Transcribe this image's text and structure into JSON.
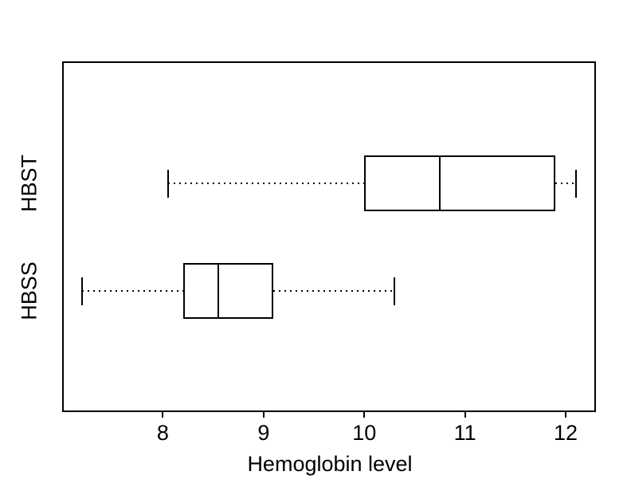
{
  "chart_data": {
    "type": "boxplot",
    "orientation": "horizontal",
    "title": "",
    "xlabel": "Hemoglobin level",
    "ylabel": "",
    "xlim": [
      7.0,
      12.3
    ],
    "x_tick_values": [
      8,
      9,
      10,
      11,
      12
    ],
    "x_tick_labels": [
      "8",
      "9",
      "10",
      "11",
      "12"
    ],
    "grid": false,
    "legend_position": "none",
    "categories_top_to_bottom": [
      "HBST",
      "HBSS"
    ],
    "series": [
      {
        "name": "HBST",
        "whisker_min": 8.05,
        "q1": 10.0,
        "median": 10.75,
        "q3": 11.9,
        "whisker_max": 12.1,
        "outliers": []
      },
      {
        "name": "HBSS",
        "whisker_min": 7.2,
        "q1": 8.2,
        "median": 8.55,
        "q3": 9.1,
        "whisker_max": 10.3,
        "outliers": []
      }
    ],
    "colors": {
      "stroke": "#000000",
      "background": "#ffffff"
    }
  }
}
